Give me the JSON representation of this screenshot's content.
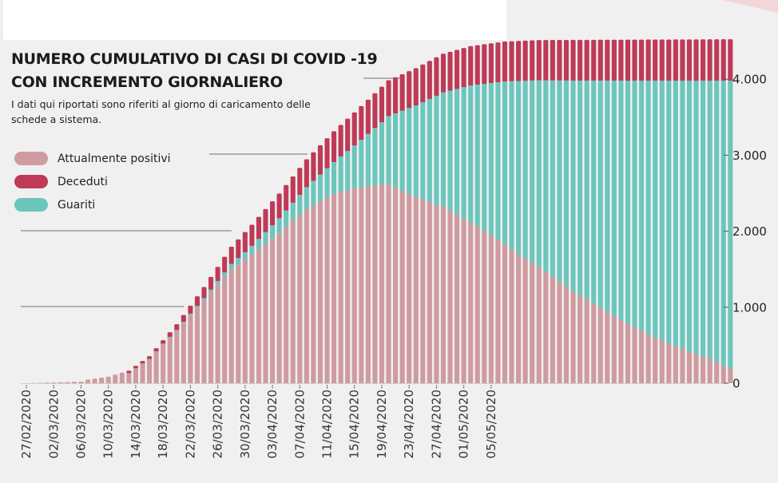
{
  "title_lines": [
    "NUMERO CUMULATIVO DI CASI DI COVID -19",
    "CON INCREMENTO GIORNALIERO"
  ],
  "subtitle_lines": [
    "I dati qui riportati sono riferiti al giorno di caricamento delle",
    "schede a sistema."
  ],
  "colors": {
    "background": "#f1f0f0",
    "positivi": "#cf9ba0",
    "deceduti": "#be3a57",
    "guariti": "#6cc6bd",
    "guideline": "#9a9a9a",
    "accent": "#f2d6da"
  },
  "chart_data": {
    "type": "bar",
    "stacked": true,
    "ylim": [
      0,
      4500
    ],
    "yticks": [
      0,
      1000,
      2000,
      3000,
      4000
    ],
    "ytick_labels": [
      "0",
      "1.000",
      "2.000",
      "3.000",
      "4.000"
    ],
    "x_start_date": "27/02/2020",
    "xtick_labels": [
      "27/02/2020",
      "02/03/2020",
      "06/03/2020",
      "10/03/2020",
      "14/03/2020",
      "18/03/2020",
      "22/03/2020",
      "26/03/2020",
      "30/03/2020",
      "03/04/2020",
      "07/04/2020",
      "11/04/2020",
      "15/04/2020",
      "19/04/2020",
      "23/04/2020",
      "27/04/2020",
      "01/05/2020",
      "05/05/2020"
    ],
    "legend": [
      "Attualmente positivi",
      "Deceduti",
      "Guariti"
    ],
    "legend_position": "top-left",
    "series": [
      {
        "name": "Attualmente positivi",
        "key": "positivi",
        "color": "#cf9ba0"
      },
      {
        "name": "Deceduti",
        "key": "deceduti",
        "color": "#be3a57"
      },
      {
        "name": "Guariti",
        "key": "guariti",
        "color": "#6cc6bd"
      }
    ],
    "totals_keyframes": [
      [
        0,
        0
      ],
      [
        8,
        20
      ],
      [
        12,
        70
      ],
      [
        15,
        150
      ],
      [
        18,
        340
      ],
      [
        22,
        760
      ],
      [
        26,
        1250
      ],
      [
        30,
        1780
      ],
      [
        33,
        2070
      ],
      [
        37,
        2480
      ],
      [
        41,
        2930
      ],
      [
        45,
        3300
      ],
      [
        49,
        3630
      ],
      [
        53,
        3970
      ],
      [
        57,
        4130
      ],
      [
        61,
        4320
      ],
      [
        65,
        4420
      ],
      [
        70,
        4480
      ],
      [
        75,
        4500
      ],
      [
        103,
        4510
      ]
    ],
    "deceduti_keyframes": [
      [
        0,
        0
      ],
      [
        14,
        0
      ],
      [
        20,
        30
      ],
      [
        24,
        90
      ],
      [
        28,
        170
      ],
      [
        32,
        250
      ],
      [
        36,
        300
      ],
      [
        40,
        340
      ],
      [
        44,
        380
      ],
      [
        48,
        420
      ],
      [
        52,
        450
      ],
      [
        56,
        470
      ],
      [
        60,
        490
      ],
      [
        64,
        500
      ],
      [
        70,
        510
      ],
      [
        80,
        520
      ],
      [
        103,
        530
      ]
    ],
    "guariti_keyframes": [
      [
        0,
        0
      ],
      [
        18,
        0
      ],
      [
        22,
        5
      ],
      [
        26,
        30
      ],
      [
        30,
        70
      ],
      [
        33,
        110
      ],
      [
        36,
        170
      ],
      [
        40,
        260
      ],
      [
        44,
        380
      ],
      [
        48,
        560
      ],
      [
        52,
        820
      ],
      [
        56,
        1130
      ],
      [
        60,
        1430
      ],
      [
        64,
        1730
      ],
      [
        68,
        2000
      ],
      [
        72,
        2280
      ],
      [
        76,
        2520
      ],
      [
        80,
        2770
      ],
      [
        84,
        2990
      ],
      [
        88,
        3200
      ],
      [
        92,
        3380
      ],
      [
        96,
        3530
      ],
      [
        100,
        3660
      ],
      [
        103,
        3790
      ]
    ]
  }
}
